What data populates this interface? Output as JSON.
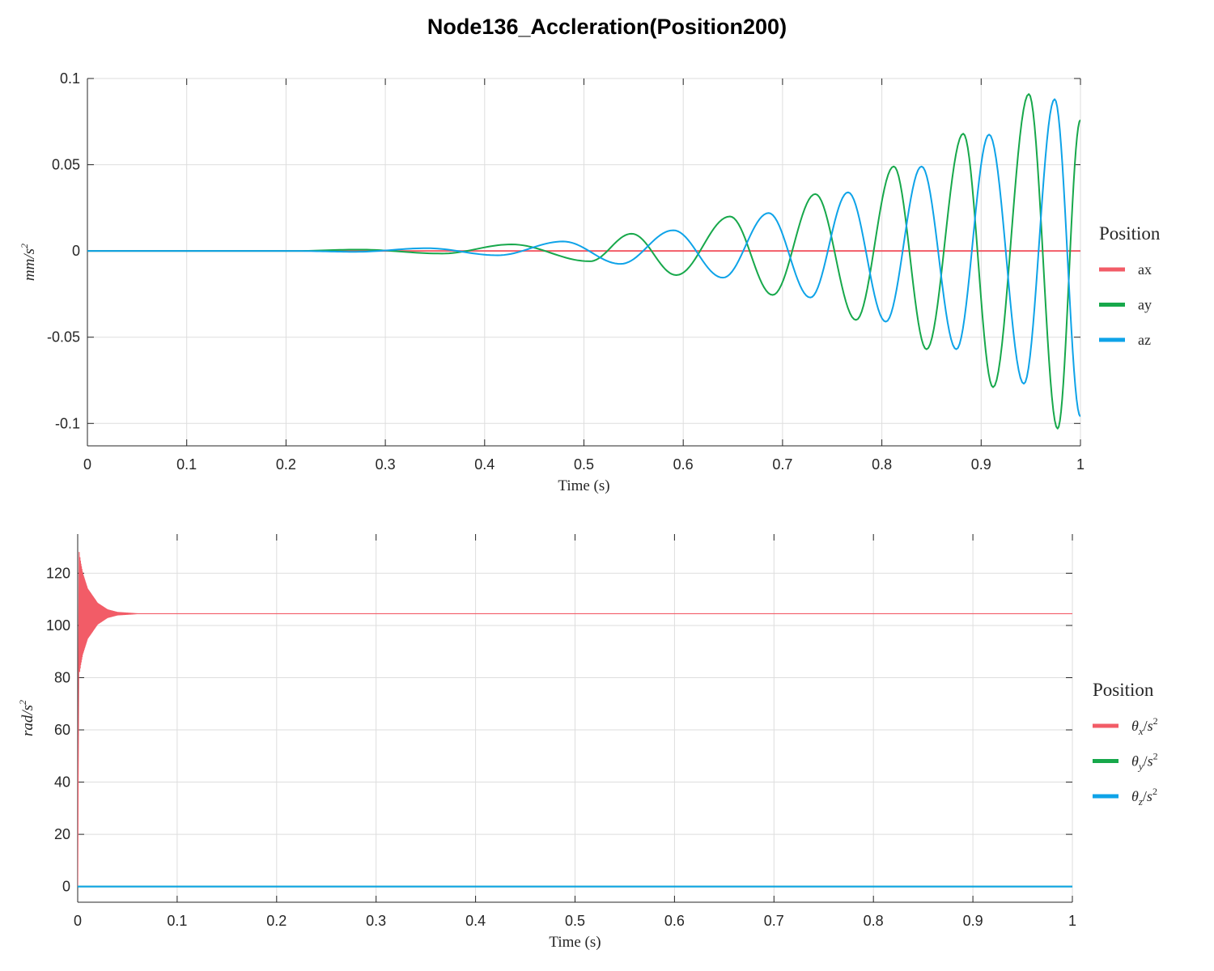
{
  "title": "Node136_Accleration(Position200)",
  "colors": {
    "ax": "#f25c67",
    "ay": "#17a84b",
    "az": "#0ea3e8",
    "grid": "#dedede",
    "axis": "#262626"
  },
  "chart_data": [
    {
      "type": "line",
      "xlabel": "Time (s)",
      "ylabel": "mm/s²",
      "xlim": [
        0,
        1
      ],
      "ylim": [
        -0.113,
        0.1
      ],
      "xticks": [
        "0",
        "0.1",
        "0.2",
        "0.3",
        "0.4",
        "0.5",
        "0.6",
        "0.7",
        "0.8",
        "0.9",
        "1"
      ],
      "yticks": [
        "-0.1",
        "-0.05",
        "0",
        "0.05",
        "0.1"
      ],
      "grid": true,
      "legend": {
        "title": "Position",
        "placement": "right"
      },
      "series": [
        {
          "name": "ax",
          "color": "#f25c67",
          "x": [
            0,
            1
          ],
          "y": [
            0,
            0
          ]
        },
        {
          "name": "ay",
          "color": "#17a84b",
          "x": [
            0.0,
            0.15,
            0.21,
            0.273,
            0.357,
            0.427,
            0.506,
            0.548,
            0.593,
            0.647,
            0.69,
            0.733,
            0.774,
            0.812,
            0.845,
            0.882,
            0.912,
            0.948,
            0.977,
            1.0
          ],
          "y": [
            0.0,
            0.0,
            0.0,
            0.0008,
            -0.0015,
            0.0038,
            -0.006,
            0.01,
            -0.014,
            0.02,
            -0.0255,
            0.033,
            -0.04,
            0.049,
            -0.057,
            0.068,
            -0.079,
            0.091,
            -0.103,
            0.076
          ]
        },
        {
          "name": "az",
          "color": "#0ea3e8",
          "x": [
            0.0,
            0.15,
            0.21,
            0.27,
            0.342,
            0.413,
            0.479,
            0.537,
            0.59,
            0.64,
            0.686,
            0.728,
            0.766,
            0.804,
            0.84,
            0.875,
            0.908,
            0.943,
            0.974,
            1.0
          ],
          "y": [
            0.0,
            0.0,
            0.0,
            -0.0005,
            0.0016,
            -0.0025,
            0.0055,
            -0.0075,
            0.012,
            -0.0155,
            0.022,
            -0.027,
            0.034,
            -0.041,
            0.049,
            -0.057,
            0.0675,
            -0.077,
            0.088,
            -0.096
          ]
        }
      ]
    },
    {
      "type": "line",
      "xlabel": "Time (s)",
      "ylabel": "rad/s²",
      "xlim": [
        0,
        1
      ],
      "ylim": [
        -6,
        135
      ],
      "xticks": [
        "0",
        "0.1",
        "0.2",
        "0.3",
        "0.4",
        "0.5",
        "0.6",
        "0.7",
        "0.8",
        "0.9",
        "1"
      ],
      "yticks": [
        "0",
        "20",
        "40",
        "60",
        "80",
        "100",
        "120"
      ],
      "grid": true,
      "legend": {
        "title": "Position",
        "placement": "right"
      },
      "series": [
        {
          "name": "θx/s²",
          "color": "#f25c67",
          "x": [
            0.0,
            0.001,
            0.0015,
            0.003,
            0.005,
            0.01,
            0.02,
            0.03,
            0.04,
            0.06,
            1.0
          ],
          "y": [
            0.0,
            60,
            128,
            124,
            120,
            114,
            108.5,
            106,
            105,
            104.5,
            104.5
          ],
          "decaying_oscillation_envelope": true
        },
        {
          "name": "θy/s²",
          "color": "#17a84b",
          "x": [
            0,
            1
          ],
          "y": [
            0,
            0
          ]
        },
        {
          "name": "θz/s²",
          "color": "#0ea3e8",
          "x": [
            0,
            1
          ],
          "y": [
            0,
            0
          ]
        }
      ]
    }
  ]
}
